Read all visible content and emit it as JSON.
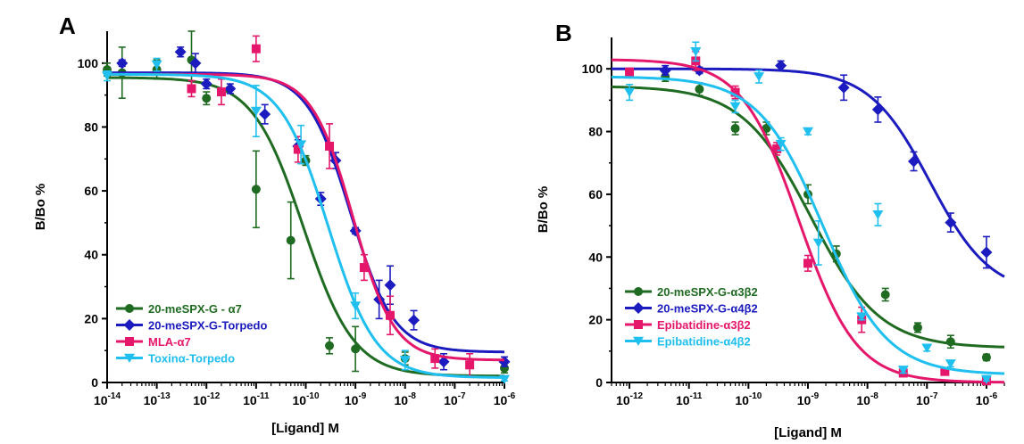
{
  "chart_data": [
    {
      "type": "scatter",
      "panel_label": "A",
      "xlabel": "[Ligand] M",
      "ylabel": "B/Bo %",
      "xscale": "log",
      "xlim": [
        1e-14,
        1e-06
      ],
      "ylim": [
        0,
        110
      ],
      "xticks": [
        -14,
        -13,
        -12,
        -11,
        -10,
        -9,
        -8,
        -7,
        -6
      ],
      "yticks": [
        0,
        20,
        40,
        60,
        80,
        100
      ],
      "grid": false,
      "legend": "bottom-left",
      "series": [
        {
          "name": "20-meSPX-G - α7",
          "color": "#1f6b22",
          "marker": "circle",
          "points": [
            {
              "x": 1e-14,
              "y": 98,
              "err": 2
            },
            {
              "x": 2e-14,
              "y": 97,
              "err": 8
            },
            {
              "x": 1e-13,
              "y": 98,
              "err": 3
            },
            {
              "x": 5e-13,
              "y": 101,
              "err": 9
            },
            {
              "x": 1e-12,
              "y": 89,
              "err": 2
            },
            {
              "x": 1e-11,
              "y": 60.5,
              "err": 12
            },
            {
              "x": 5e-11,
              "y": 44.5,
              "err": 12
            },
            {
              "x": 1e-10,
              "y": 69.5,
              "err": 1.5
            },
            {
              "x": 3e-10,
              "y": 11.5,
              "err": 2.5
            },
            {
              "x": 1e-09,
              "y": 10.5,
              "err": 7
            },
            {
              "x": 1e-08,
              "y": 7.5,
              "err": 2
            },
            {
              "x": 1e-06,
              "y": 4.5,
              "err": 1.5
            }
          ],
          "fit": {
            "top": 95.5,
            "bottom": 2,
            "logIC50": -10.05,
            "hill": 0.85
          }
        },
        {
          "name": "20-meSPX-G-Torpedo",
          "color": "#1b1bbf",
          "marker": "diamond",
          "points": [
            {
              "x": 2e-14,
              "y": 100,
              "err": 1
            },
            {
              "x": 3e-13,
              "y": 103.5,
              "err": 1.5
            },
            {
              "x": 6e-13,
              "y": 100,
              "err": 3
            },
            {
              "x": 1e-12,
              "y": 93.5,
              "err": 1.5
            },
            {
              "x": 3e-12,
              "y": 92,
              "err": 1.5
            },
            {
              "x": 1.5e-11,
              "y": 84,
              "err": 3
            },
            {
              "x": 7e-11,
              "y": 74,
              "err": 2
            },
            {
              "x": 2e-10,
              "y": 57.5,
              "err": 2
            },
            {
              "x": 4e-10,
              "y": 69.5,
              "err": 2.5
            },
            {
              "x": 1e-09,
              "y": 47.5,
              "err": 1
            },
            {
              "x": 3e-09,
              "y": 26,
              "err": 6
            },
            {
              "x": 5e-09,
              "y": 30.5,
              "err": 6
            },
            {
              "x": 1.5e-08,
              "y": 19.5,
              "err": 3
            },
            {
              "x": 6e-08,
              "y": 6.5,
              "err": 2.5
            },
            {
              "x": 1e-06,
              "y": 6.5,
              "err": 1.5
            }
          ],
          "fit": {
            "top": 97,
            "bottom": 9.5,
            "logIC50": -9.1,
            "hill": 1.0
          }
        },
        {
          "name": "MLA-α7",
          "color": "#e5176b",
          "marker": "square",
          "points": [
            {
              "x": 5e-13,
              "y": 92,
              "err": 2.5
            },
            {
              "x": 2e-12,
              "y": 91,
              "err": 4
            },
            {
              "x": 1e-11,
              "y": 104.5,
              "err": 4
            },
            {
              "x": 7e-11,
              "y": 73,
              "err": 4
            },
            {
              "x": 3e-10,
              "y": 74,
              "err": 7
            },
            {
              "x": 1.5e-09,
              "y": 36,
              "err": 4
            },
            {
              "x": 5e-09,
              "y": 21,
              "err": 6
            },
            {
              "x": 4e-08,
              "y": 7.5,
              "err": 3
            },
            {
              "x": 2e-07,
              "y": 5.5,
              "err": 3.5
            }
          ],
          "fit": {
            "top": 96.5,
            "bottom": 7,
            "logIC50": -9.05,
            "hill": 1.05
          }
        },
        {
          "name": "Toxinα-Torpedo",
          "color": "#1fbfef",
          "marker": "triangle-down",
          "points": [
            {
              "x": 1e-14,
              "y": 96,
              "err": 1.5
            },
            {
              "x": 1e-13,
              "y": 99.5,
              "err": 2
            },
            {
              "x": 1e-11,
              "y": 85,
              "err": 8
            },
            {
              "x": 8e-11,
              "y": 74.5,
              "err": 6
            },
            {
              "x": 1e-09,
              "y": 24,
              "err": 4
            },
            {
              "x": 1e-08,
              "y": 7,
              "err": 3
            },
            {
              "x": 1e-06,
              "y": 1,
              "err": 0.5
            }
          ],
          "fit": {
            "top": 96.5,
            "bottom": 1.5,
            "logIC50": -9.55,
            "hill": 0.9
          }
        }
      ]
    },
    {
      "type": "scatter",
      "panel_label": "B",
      "xlabel": "[Ligand] M",
      "ylabel": "B/Bo %",
      "xscale": "log",
      "xlim": [
        5e-13,
        2e-06
      ],
      "ylim": [
        0,
        110
      ],
      "xticks": [
        -12,
        -11,
        -10,
        -9,
        -8,
        -7,
        -6
      ],
      "yticks": [
        0,
        20,
        40,
        60,
        80,
        100
      ],
      "grid": false,
      "legend": "bottom-left",
      "series": [
        {
          "name": "20-meSPX-G-α3β2",
          "color": "#1f6b22",
          "marker": "circle",
          "points": [
            {
              "x": 4e-12,
              "y": 97.5,
              "err": 1.5
            },
            {
              "x": 1.5e-11,
              "y": 93.5,
              "err": 2
            },
            {
              "x": 6e-11,
              "y": 81,
              "err": 2
            },
            {
              "x": 2e-10,
              "y": 81,
              "err": 2
            },
            {
              "x": 1e-09,
              "y": 60,
              "err": 3
            },
            {
              "x": 3e-09,
              "y": 41,
              "err": 2.5
            },
            {
              "x": 2e-08,
              "y": 28,
              "err": 2
            },
            {
              "x": 7e-08,
              "y": 17.5,
              "err": 1.5
            },
            {
              "x": 2.5e-07,
              "y": 13,
              "err": 2
            },
            {
              "x": 1e-06,
              "y": 8,
              "err": 1
            }
          ],
          "fit": {
            "top": 94.5,
            "bottom": 11,
            "logIC50": -8.95,
            "hill": 0.75
          }
        },
        {
          "name": "20-meSPX-G-α4β2",
          "color": "#1b1bbf",
          "marker": "diamond",
          "points": [
            {
              "x": 4e-12,
              "y": 99.5,
              "err": 1.5
            },
            {
              "x": 1.5e-11,
              "y": 99.5,
              "err": 1
            },
            {
              "x": 3.5e-10,
              "y": 101,
              "err": 1.5
            },
            {
              "x": 4e-09,
              "y": 94,
              "err": 4
            },
            {
              "x": 1.5e-08,
              "y": 87,
              "err": 4
            },
            {
              "x": 6e-08,
              "y": 70.5,
              "err": 3
            },
            {
              "x": 2.5e-07,
              "y": 51,
              "err": 3
            },
            {
              "x": 1e-06,
              "y": 41.5,
              "err": 5
            }
          ],
          "fit": {
            "top": 100,
            "bottom": 28,
            "logIC50": -6.95,
            "hill": 0.85
          }
        },
        {
          "name": "Epibatidine-α3β2",
          "color": "#e5176b",
          "marker": "square",
          "points": [
            {
              "x": 1e-12,
              "y": 99,
              "err": 1
            },
            {
              "x": 1.3e-11,
              "y": 102.5,
              "err": 3
            },
            {
              "x": 6e-11,
              "y": 92.5,
              "err": 2
            },
            {
              "x": 3e-10,
              "y": 74.5,
              "err": 2
            },
            {
              "x": 1e-09,
              "y": 38,
              "err": 2.5
            },
            {
              "x": 8e-09,
              "y": 20,
              "err": 4
            },
            {
              "x": 4e-08,
              "y": 3,
              "err": 1
            },
            {
              "x": 2e-07,
              "y": 3.5,
              "err": 0.5
            },
            {
              "x": 1e-06,
              "y": 0.5,
              "err": 0.5
            }
          ],
          "fit": {
            "top": 103,
            "bottom": 0,
            "logIC50": -9.15,
            "hill": 0.9
          }
        },
        {
          "name": "Epibatidine-α4β2",
          "color": "#1fbfef",
          "marker": "triangle-down",
          "points": [
            {
              "x": 1e-12,
              "y": 92.5,
              "err": 2.5
            },
            {
              "x": 1.3e-11,
              "y": 105.5,
              "err": 3
            },
            {
              "x": 6e-11,
              "y": 88,
              "err": 2
            },
            {
              "x": 1.5e-10,
              "y": 97.5,
              "err": 2
            },
            {
              "x": 3.5e-10,
              "y": 76,
              "err": 2
            },
            {
              "x": 1e-09,
              "y": 80,
              "err": 1
            },
            {
              "x": 1.5e-09,
              "y": 44.5,
              "err": 7
            },
            {
              "x": 1.5e-08,
              "y": 53.5,
              "err": 3.5
            },
            {
              "x": 8e-09,
              "y": 21,
              "err": 1
            },
            {
              "x": 4e-08,
              "y": 4,
              "err": 1
            },
            {
              "x": 1e-07,
              "y": 11,
              "err": 1
            },
            {
              "x": 2.5e-07,
              "y": 6,
              "err": 1
            },
            {
              "x": 1e-06,
              "y": 1,
              "err": 0.5
            }
          ],
          "fit": {
            "top": 97.5,
            "bottom": 2.5,
            "logIC50": -8.75,
            "hill": 0.8
          }
        }
      ]
    }
  ]
}
